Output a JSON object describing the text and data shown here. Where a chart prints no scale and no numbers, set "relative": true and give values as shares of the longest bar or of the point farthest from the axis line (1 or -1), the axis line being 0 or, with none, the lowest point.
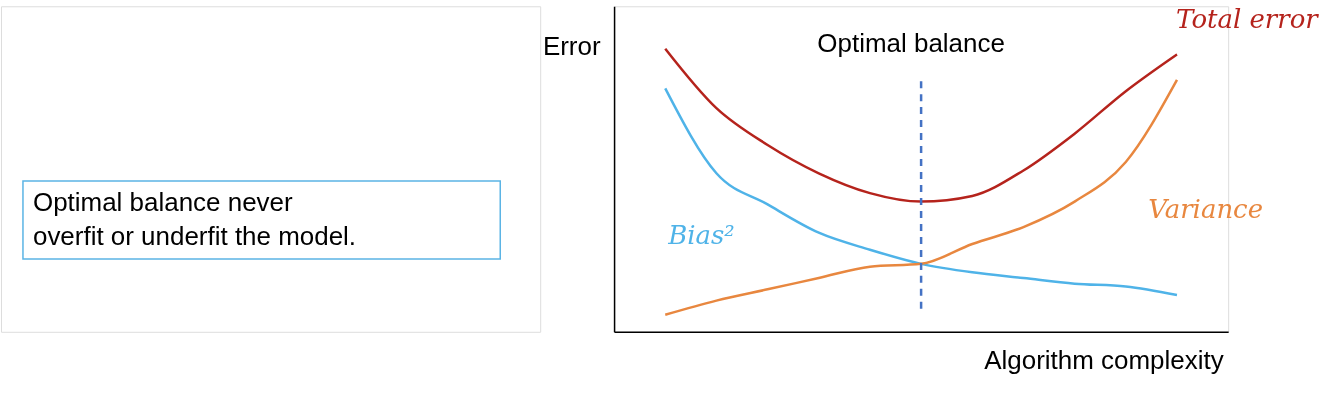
{
  "chart_data": {
    "type": "line",
    "relative": true,
    "xlabel": "Algorithm complexity",
    "ylabel": "Error",
    "marker": "none",
    "line_style": "solid",
    "categories": [
      null,
      null,
      null,
      null,
      null,
      null,
      null,
      null,
      null,
      null,
      null
    ],
    "series": [
      {
        "name": "Total error",
        "color": "#b5231c",
        "values": [
          1,
          0.79,
          0.66,
          0.56,
          0.49,
          0.46,
          0.48,
          0.57,
          0.7,
          0.85,
          0.98
        ]
      },
      {
        "name": "Bias²",
        "color": "#4fb3e8",
        "values": [
          0.86,
          0.56,
          0.45,
          0.35,
          0.29,
          0.24,
          0.21,
          0.19,
          0.17,
          0.16,
          0.13
        ]
      },
      {
        "name": "Variance",
        "color": "#e8873f",
        "values": [
          0.06,
          0.11,
          0.15,
          0.19,
          0.23,
          0.24,
          0.31,
          0.37,
          0.46,
          0.6,
          0.89
        ]
      }
    ],
    "annotations": [
      "Optimal balance",
      "Optimal balance never\noverfit or underfit the model."
    ]
  }
}
